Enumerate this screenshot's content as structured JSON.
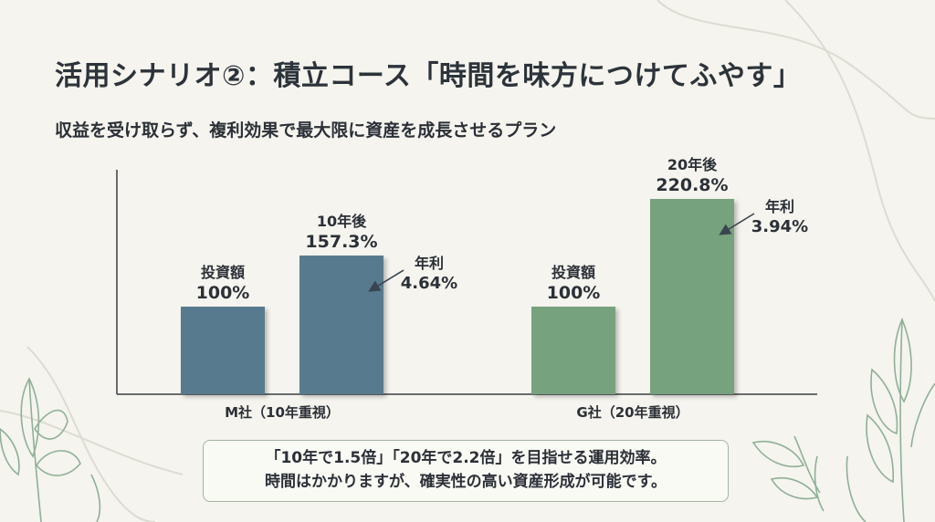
{
  "slide": {
    "title": "活用シナリオ②：積立コース「時間を味方につけてふやす」",
    "subtitle": "収益を受け取らず、複利効果で最大限に資産を成長させるプラン",
    "note_lines": [
      "「10年で1.5倍」「20年で2.2倍」を目指せる運用効率。",
      "時間はかかりますが、確実性の高い資産形成が可能です。"
    ]
  },
  "colors": {
    "m_series": "#587a8e",
    "g_series": "#77a27e",
    "axis": "#3a3f45",
    "leaf": "#8fb096",
    "deco_line": "#dcdcd2"
  },
  "chart_data": {
    "type": "bar",
    "title": "",
    "xlabel": "",
    "ylabel": "",
    "ylim": [
      0,
      240
    ],
    "grid": false,
    "legend": "none",
    "groups": [
      {
        "name": "M社（10年重視）",
        "color_key": "m_series",
        "bars": [
          {
            "label_top": "投資額",
            "label_value": "100%",
            "value": 100
          },
          {
            "label_top": "10年後",
            "label_value": "157.3%",
            "value": 157.3
          }
        ],
        "annotation": {
          "line1": "年利",
          "line2": "4.64%"
        }
      },
      {
        "name": "G社（20年重視）",
        "color_key": "g_series",
        "bars": [
          {
            "label_top": "投資額",
            "label_value": "100%",
            "value": 100
          },
          {
            "label_top": "20年後",
            "label_value": "220.8%",
            "value": 220.8
          }
        ],
        "annotation": {
          "line1": "年利",
          "line2": "3.94%"
        }
      }
    ]
  }
}
